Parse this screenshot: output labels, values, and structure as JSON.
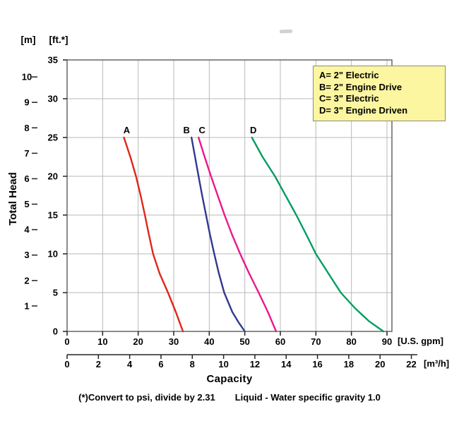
{
  "chart_data": {
    "type": "line",
    "x_title": "Capacity",
    "y_title": "Total Head",
    "footnote_left": "(*)Convert to psi, divide by 2.31",
    "footnote_right": "Liquid - Water specific gravity 1.0",
    "x_axis_gpm": {
      "unit_label": "[U.S. gpm]",
      "ticks": [
        0,
        10,
        20,
        30,
        40,
        50,
        60,
        70,
        80,
        90
      ],
      "range": [
        0,
        90
      ]
    },
    "x_axis_m3h": {
      "unit_label": "[m³/h]",
      "ticks": [
        0,
        2,
        4,
        6,
        8,
        10,
        12,
        14,
        16,
        18,
        20,
        22
      ],
      "gpm_per_unit": 4.40287
    },
    "y_axis_ft": {
      "unit_label": "[ft.*]",
      "ticks": [
        0,
        5,
        10,
        15,
        20,
        25,
        30,
        35
      ],
      "range": [
        0,
        35
      ]
    },
    "y_axis_m": {
      "unit_label": "[m]",
      "ticks": [
        1,
        2,
        3,
        4,
        5,
        6,
        7,
        8,
        9,
        10
      ],
      "ft_per_unit": 3.28084
    },
    "grid": {
      "x_step_gpm": 10,
      "y_step_ft": 5,
      "color": "#b8b8b8",
      "visible": true
    },
    "legend": {
      "background": "#fcf6a0",
      "items": [
        "A= 2\" Electric",
        "B= 2\" Engine Drive",
        "C= 3\" Electric",
        "D= 3\" Engine Driven"
      ]
    },
    "series": [
      {
        "label": "A",
        "description": "2\" Electric",
        "color": "#e02619",
        "label_dx": 4,
        "points": [
          [
            16,
            25
          ],
          [
            17.8,
            22.5
          ],
          [
            19.4,
            20
          ],
          [
            20.7,
            17.5
          ],
          [
            21.9,
            15
          ],
          [
            23,
            12.5
          ],
          [
            24.2,
            10
          ],
          [
            26,
            7.5
          ],
          [
            28.4,
            5
          ],
          [
            30.6,
            2.5
          ],
          [
            32.6,
            0
          ]
        ]
      },
      {
        "label": "B",
        "description": "2\" Engine Drive",
        "color": "#31398f",
        "label_dx": -7,
        "points": [
          [
            35,
            25
          ],
          [
            36,
            22.5
          ],
          [
            37,
            20
          ],
          [
            38,
            17.5
          ],
          [
            39.1,
            15
          ],
          [
            40.2,
            12.5
          ],
          [
            41.4,
            10
          ],
          [
            42.7,
            7.5
          ],
          [
            44.2,
            5
          ],
          [
            46.5,
            2.5
          ],
          [
            48.2,
            1.2
          ],
          [
            50,
            0
          ]
        ]
      },
      {
        "label": "C",
        "description": "3\" Electric",
        "color": "#ec168c",
        "label_dx": 5,
        "points": [
          [
            37,
            25
          ],
          [
            38.7,
            22.5
          ],
          [
            40.5,
            20
          ],
          [
            42.4,
            17.5
          ],
          [
            44.3,
            15
          ],
          [
            46.4,
            12.5
          ],
          [
            48.7,
            10
          ],
          [
            51.2,
            7.5
          ],
          [
            53.9,
            5
          ],
          [
            56.5,
            2.5
          ],
          [
            58.8,
            0
          ]
        ]
      },
      {
        "label": "D",
        "description": "3\" Engine Driven",
        "color": "#009e60",
        "label_dx": 2,
        "points": [
          [
            52,
            25
          ],
          [
            55,
            22.5
          ],
          [
            58.5,
            20
          ],
          [
            61.5,
            17.5
          ],
          [
            64.5,
            15
          ],
          [
            67.3,
            12.5
          ],
          [
            70,
            10
          ],
          [
            73.5,
            7.5
          ],
          [
            77,
            5
          ],
          [
            81,
            3
          ],
          [
            85,
            1.3
          ],
          [
            89,
            0
          ]
        ]
      }
    ]
  }
}
